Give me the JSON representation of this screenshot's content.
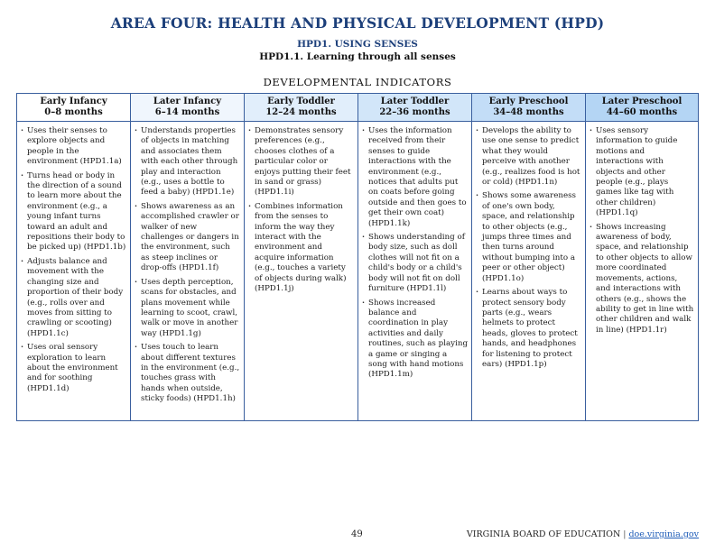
{
  "header": {
    "area_title": "AREA FOUR:  HEALTH AND PHYSICAL DEVELOPMENT (HPD)",
    "sub_code": "HPD1. USING SENSES",
    "sub_title": "HPD1.1. Learning through all senses",
    "indicators_label": "DEVELOPMENTAL INDICATORS"
  },
  "columns": [
    {
      "name": "Early Infancy",
      "age": "0–8 months",
      "items": [
        "Uses their senses to explore objects and people in the environment (HPD1.1a)",
        "Turns head or body in the direction of a sound to learn more about the environment (e.g., a young infant turns toward an adult and repositions their body to be picked up) (HPD1.1b)",
        "Adjusts balance and movement with the changing size and proportion of their body (e.g., rolls over and moves from sitting to crawling or scooting) (HPD1.1c)",
        "Uses oral sensory exploration to learn about the environment and for soothing (HPD1.1d)"
      ]
    },
    {
      "name": "Later Infancy",
      "age": "6–14 months",
      "items": [
        "Understands properties of objects in matching and associates them with each other through play and interaction (e.g., uses a bottle to feed a baby) (HPD1.1e)",
        "Shows awareness as an accomplished crawler or walker of new challenges or dangers in the environment, such as steep inclines or drop-offs (HPD1.1f)",
        "Uses depth perception, scans for obstacles, and plans movement while learning to scoot, crawl, walk or move in another way (HPD1.1g)",
        "Uses touch to learn about different textures in the environment (e.g., touches grass with hands when outside, sticky foods) (HPD1.1h)"
      ]
    },
    {
      "name": "Early Toddler",
      "age": "12–24 months",
      "items": [
        "Demonstrates sensory preferences (e.g., chooses clothes of a particular color or enjoys putting their feet in sand or grass) (HPD1.1i)",
        "Combines information from the senses to inform the way they interact with the environment and acquire information (e.g., touches a variety of objects during walk) (HPD1.1j)"
      ]
    },
    {
      "name": "Later Toddler",
      "age": "22–36 months",
      "items": [
        "Uses the information received from their senses to guide interactions with the environment (e.g., notices that adults put on coats before going outside and then goes to get their own coat) (HPD1.1k)",
        "Shows understanding of body size, such as doll clothes will not fit on a child's body or a child's body will not fit on doll furniture (HPD1.1l)",
        "Shows increased balance and coordination in play activities and daily routines, such as playing a game or singing a song with hand motions (HPD1.1m)"
      ]
    },
    {
      "name": "Early Preschool",
      "age": "34–48 months",
      "items": [
        "Develops the ability to use one sense to predict what they would perceive with another (e.g., realizes food is hot or cold) (HPD1.1n)",
        "Shows some awareness of one's own body, space, and relationship to other objects (e.g., jumps three times and then turns around without bumping into a peer or other object) (HPD1.1o)",
        "Learns about ways to protect sensory body parts (e.g., wears helmets to protect heads, gloves to protect hands, and headphones for listening to protect ears) (HPD1.1p)"
      ]
    },
    {
      "name": "Later Preschool",
      "age": "44–60 months",
      "items": [
        "Uses sensory information to guide motions and interactions with objects and other people (e.g., plays games like tag with other children) (HPD1.1q)",
        "Shows increasing awareness of body, space, and relationship to other objects to allow more coordinated movements, actions, and interactions with others (e.g., shows the ability to get in line with other children and walk in line) (HPD1.1r)"
      ]
    }
  ],
  "bullet_symbol": "·",
  "footer": {
    "page_number": "49",
    "publisher": "VIRGINIA BOARD OF EDUCATION",
    "separator": "|",
    "link": "doe.virginia.gov"
  },
  "colors": {
    "title_blue": "#1c3f7a",
    "border_blue": "#3a5f9e",
    "header_shades": [
      "#ffffff",
      "#f0f6fd",
      "#e1eefb",
      "#d2e6f9",
      "#c3ddf7",
      "#b4d5f4"
    ],
    "link_blue": "#1c5bb8"
  }
}
